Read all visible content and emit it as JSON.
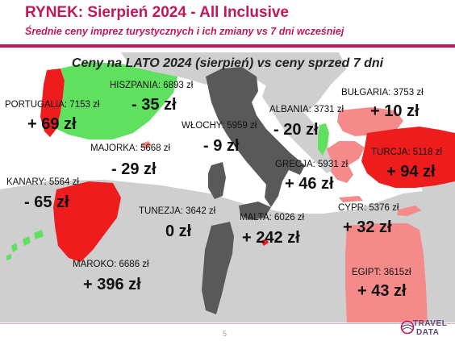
{
  "header": {
    "title": "RYNEK: Sierpień 2024 - All Inclusive",
    "subtitle": "Średnie ceny imprez turystycznych i ich zmiany vs 7 dni wcześniej"
  },
  "map": {
    "title": "Ceny na LATO 2024 (sierpień) vs ceny sprzed 7 dni",
    "colors": {
      "sea": "#ffffff",
      "land": "#cfcfcf",
      "increase": "#ee1c1c",
      "increase_light": "#f48a8a",
      "decrease": "#5fe05f",
      "neutral": "#595959"
    },
    "destinations": [
      {
        "key": "portugalia",
        "label": "PORTUGALIA: 7153 zł",
        "change": "+ 69 zł",
        "trend": "up"
      },
      {
        "key": "hiszpania",
        "label": "HISZPANIA: 6893 zł",
        "change": "- 35 zł",
        "trend": "down"
      },
      {
        "key": "majorka",
        "label": "MAJORKA: 5668 zł",
        "change": "- 29 zł",
        "trend": "down"
      },
      {
        "key": "wlochy",
        "label": "WŁOCHY: 5959 zł",
        "change": "- 9 zł",
        "trend": "down"
      },
      {
        "key": "albania",
        "label": "ALBANIA: 3731 zł",
        "change": "- 20 zł",
        "trend": "down"
      },
      {
        "key": "bulgaria",
        "label": "BUŁGARIA: 3753 zł",
        "change": "+ 10 zł",
        "trend": "up"
      },
      {
        "key": "turcja",
        "label": "TURCJA: 5118 zł",
        "change": "+ 94 zł",
        "trend": "up"
      },
      {
        "key": "grecja",
        "label": "GRECJA: 5931 zł",
        "change": "+ 46 zł",
        "trend": "up"
      },
      {
        "key": "kanary",
        "label": "KANARY: 5564 zł",
        "change": "- 65 zł",
        "trend": "down"
      },
      {
        "key": "tunezja",
        "label": "TUNEZJA: 3642 zł",
        "change": "0 zł",
        "trend": "neutral"
      },
      {
        "key": "malta",
        "label": "MALTA: 6026 zł",
        "change": "+ 242 zł",
        "trend": "up"
      },
      {
        "key": "cypr",
        "label": "CYPR: 5376 zł",
        "change": "+ 32 zł",
        "trend": "up"
      },
      {
        "key": "maroko",
        "label": "MAROKO: 6686 zł",
        "change": "+ 396 zł",
        "trend": "up"
      },
      {
        "key": "egipt",
        "label": "EGIPT: 3615zł",
        "change": "+ 43 zł",
        "trend": "up"
      }
    ]
  },
  "footer": {
    "page_number": "5",
    "logo_line1": "TRAVEL",
    "logo_line2": "DATA"
  }
}
